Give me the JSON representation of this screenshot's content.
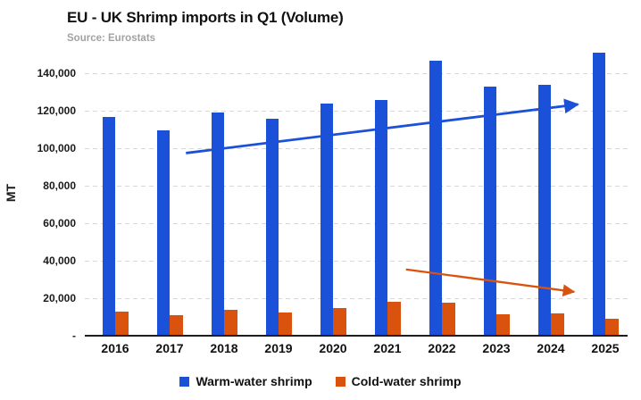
{
  "chart_data": {
    "type": "bar",
    "title": "EU - UK Shrimp imports in Q1 (Volume)",
    "subtitle": "Source: Eurostats",
    "ylabel": "MT",
    "xlabel": "",
    "categories": [
      "2016",
      "2017",
      "2018",
      "2019",
      "2020",
      "2021",
      "2022",
      "2023",
      "2024",
      "2025"
    ],
    "series": [
      {
        "name": "Warm-water shrimp",
        "color": "#1b51d8",
        "values": [
          117000,
          109500,
          119000,
          116000,
          124000,
          126000,
          147000,
          133000,
          134000,
          151000
        ]
      },
      {
        "name": "Cold-water shrimp",
        "color": "#d9530e",
        "values": [
          13000,
          11000,
          14000,
          12500,
          15000,
          18000,
          17500,
          11500,
          12000,
          9000
        ]
      }
    ],
    "ylim": [
      0,
      153000
    ],
    "yticks": [
      {
        "value": 0,
        "label": "-"
      },
      {
        "value": 20000,
        "label": "20,000"
      },
      {
        "value": 40000,
        "label": "40,000"
      },
      {
        "value": 60000,
        "label": "60,000"
      },
      {
        "value": 80000,
        "label": "80,000"
      },
      {
        "value": 100000,
        "label": "100,000"
      },
      {
        "value": 120000,
        "label": "120,000"
      },
      {
        "value": 140000,
        "label": "140,000"
      }
    ],
    "grid": "horizontal-dashed",
    "legend_position": "bottom",
    "trend_arrows": [
      {
        "series": "Warm-water shrimp",
        "color": "#1b51d8",
        "from": {
          "category_index": 1.3,
          "value": 97500
        },
        "to": {
          "category_index": 8.5,
          "value": 123500
        },
        "stroke_width": 2.8
      },
      {
        "series": "Cold-water shrimp",
        "color": "#d9530e",
        "from": {
          "category_index": 5.34,
          "value": 35400
        },
        "to": {
          "category_index": 8.43,
          "value": 23400
        },
        "stroke_width": 2.3
      }
    ]
  }
}
